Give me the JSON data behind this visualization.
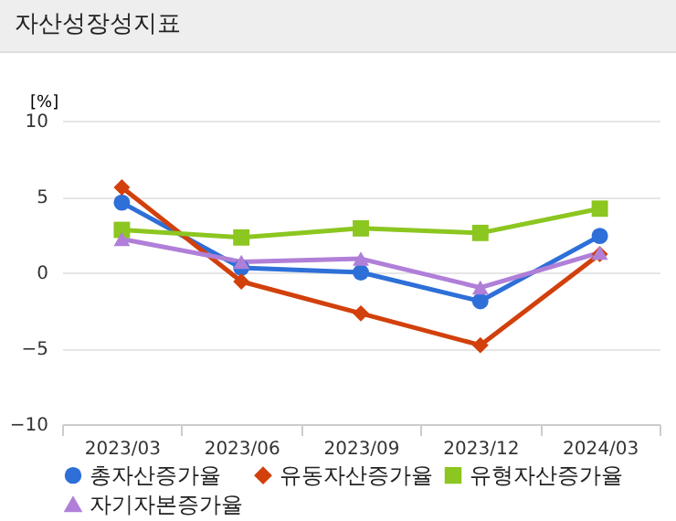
{
  "chart_data": {
    "type": "line",
    "title": "자산성장성지표",
    "ylabel": "[%]",
    "categories": [
      "2023/03",
      "2023/06",
      "2023/09",
      "2023/12",
      "2024/03"
    ],
    "series": [
      {
        "name": "총자산증가율",
        "color": "#2e6fd8",
        "marker": "circle",
        "values": [
          4.6,
          0.3,
          0.0,
          -1.9,
          2.4
        ]
      },
      {
        "name": "유동자산증가율",
        "color": "#d2400c",
        "marker": "diamond",
        "values": [
          5.6,
          -0.6,
          -2.7,
          -4.8,
          1.2
        ]
      },
      {
        "name": "유형자산증가율",
        "color": "#8cc620",
        "marker": "square",
        "values": [
          2.8,
          2.3,
          2.9,
          2.6,
          4.2
        ]
      },
      {
        "name": "자기자본증가율",
        "color": "#b07fd8",
        "marker": "triangle",
        "values": [
          2.2,
          0.7,
          0.9,
          -1.0,
          1.3
        ]
      }
    ],
    "ylim": [
      -10,
      10
    ],
    "yticks": [
      -10,
      -5,
      0,
      5,
      10
    ],
    "grid": "y",
    "legend": "bottom",
    "line_style": "solid"
  }
}
